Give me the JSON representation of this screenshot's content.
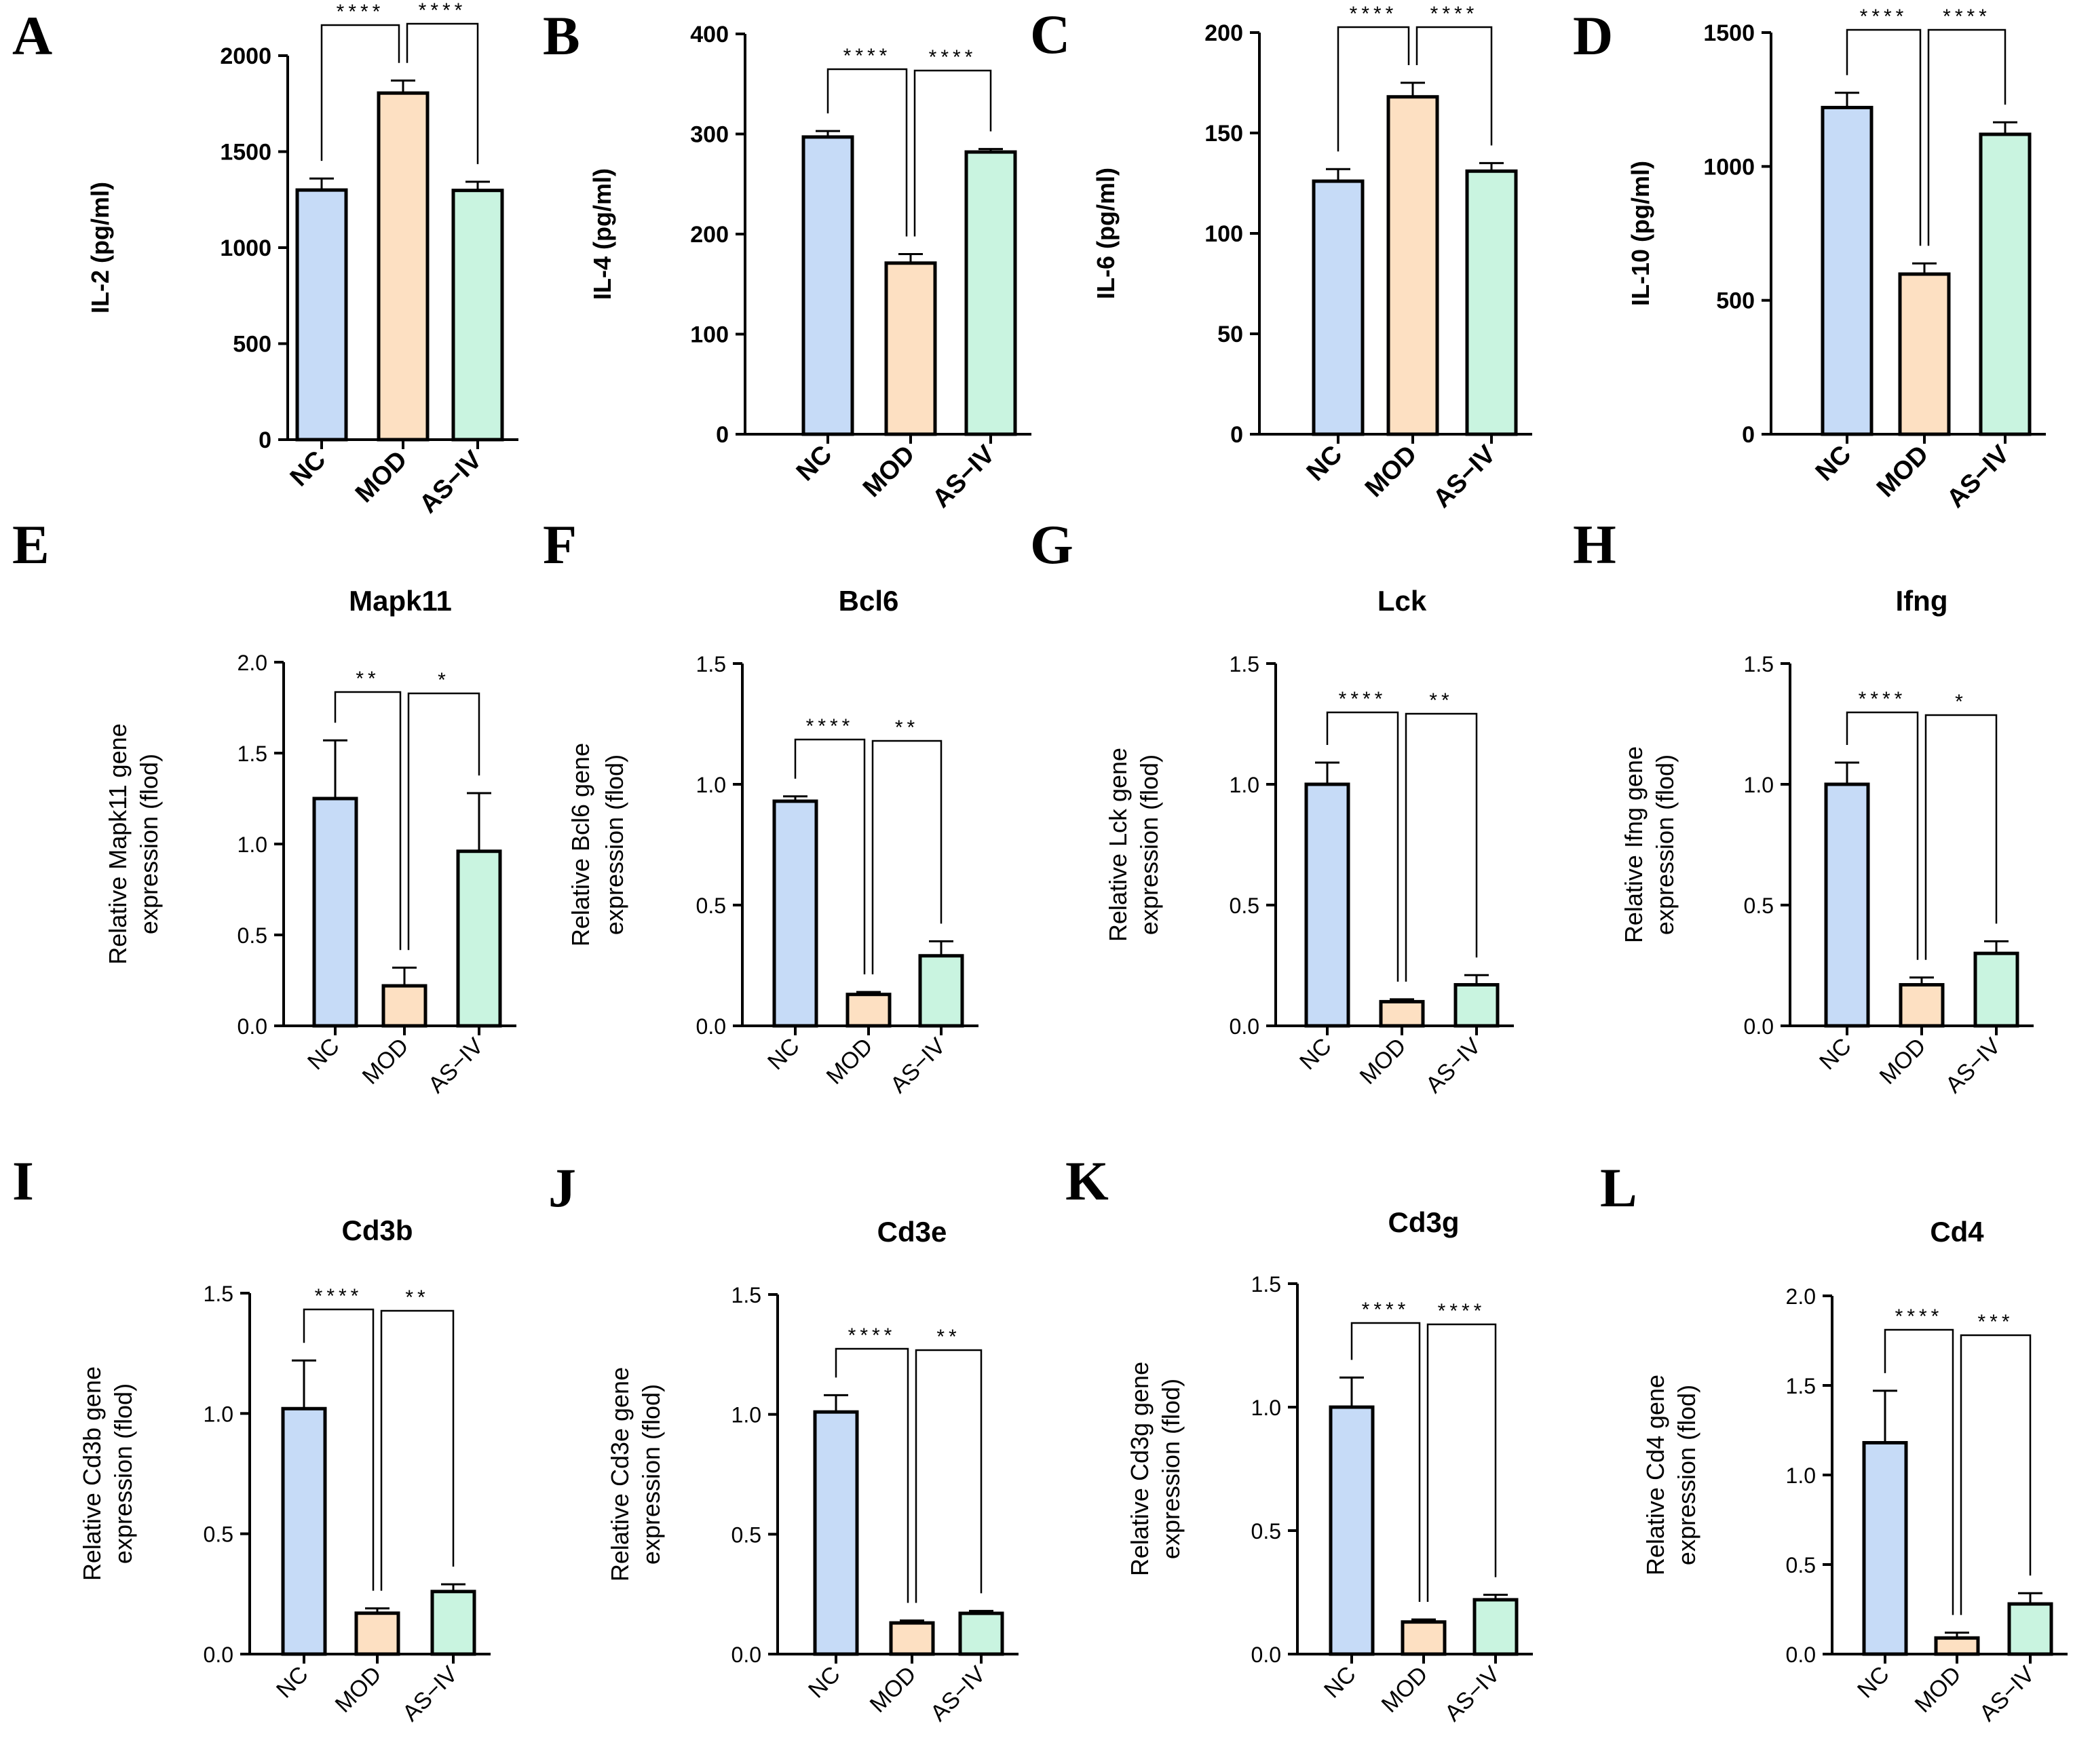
{
  "figure": {
    "colors": {
      "NC": "#c6dbf7",
      "MOD": "#fde0c2",
      "AS-IV": "#c9f4e0",
      "stroke": "#000000",
      "text": "#000000"
    }
  },
  "chart_data": [
    {
      "panel": "A",
      "type": "bar",
      "title": "",
      "ylabel": "IL-2 (pg/ml)",
      "categories": [
        "NC",
        "MOD",
        "AS−IV"
      ],
      "values": [
        1300,
        1805,
        1298
      ],
      "errors": [
        60,
        65,
        45
      ],
      "ylim": [
        0,
        2000
      ],
      "yticks": [
        "0",
        "500",
        "1000",
        "1500",
        "2000"
      ],
      "significance": [
        {
          "from": 0,
          "to": 1,
          "label": "****"
        },
        {
          "from": 1,
          "to": 2,
          "label": "****"
        }
      ]
    },
    {
      "panel": "B",
      "type": "bar",
      "title": "",
      "ylabel": "IL-4 (pg/ml)",
      "categories": [
        "NC",
        "MOD",
        "AS−IV"
      ],
      "values": [
        297,
        171,
        282
      ],
      "errors": [
        6,
        9,
        3
      ],
      "ylim": [
        0,
        400
      ],
      "yticks": [
        "0",
        "100",
        "200",
        "300",
        "400"
      ],
      "significance": [
        {
          "from": 0,
          "to": 1,
          "label": "****"
        },
        {
          "from": 1,
          "to": 2,
          "label": "****"
        }
      ]
    },
    {
      "panel": "C",
      "type": "bar",
      "title": "",
      "ylabel": "IL-6 (pg/ml)",
      "categories": [
        "NC",
        "MOD",
        "AS−IV"
      ],
      "values": [
        126,
        168,
        131
      ],
      "errors": [
        6,
        7,
        4
      ],
      "ylim": [
        0,
        200
      ],
      "yticks": [
        "0",
        "50",
        "100",
        "150",
        "200"
      ],
      "significance": [
        {
          "from": 0,
          "to": 1,
          "label": "****"
        },
        {
          "from": 1,
          "to": 2,
          "label": "****"
        }
      ]
    },
    {
      "panel": "D",
      "type": "bar",
      "title": "",
      "ylabel": "IL-10 (pg/ml)",
      "categories": [
        "NC",
        "MOD",
        "AS−IV"
      ],
      "values": [
        1220,
        598,
        1120
      ],
      "errors": [
        55,
        40,
        45
      ],
      "ylim": [
        0,
        1500
      ],
      "yticks": [
        "0",
        "500",
        "1000",
        "1500"
      ],
      "significance": [
        {
          "from": 0,
          "to": 1,
          "label": "****"
        },
        {
          "from": 1,
          "to": 2,
          "label": "****"
        }
      ]
    },
    {
      "panel": "E",
      "type": "bar",
      "title": "Mapk11",
      "ylabel": [
        "Relative Mapk11  gene",
        "expression (flod)"
      ],
      "categories": [
        "NC",
        "MOD",
        "AS−IV"
      ],
      "values": [
        1.25,
        0.22,
        0.96
      ],
      "errors": [
        0.32,
        0.1,
        0.32
      ],
      "ylim": [
        0,
        2
      ],
      "yticks": [
        "0.0",
        "0.5",
        "1.0",
        "1.5",
        "2.0"
      ],
      "significance": [
        {
          "from": 0,
          "to": 1,
          "label": "**"
        },
        {
          "from": 1,
          "to": 2,
          "label": "*"
        }
      ]
    },
    {
      "panel": "F",
      "type": "bar",
      "title": "Bcl6",
      "ylabel": [
        "Relative Bcl6 gene",
        "expression (flod)"
      ],
      "categories": [
        "NC",
        "MOD",
        "AS−IV"
      ],
      "values": [
        0.93,
        0.13,
        0.29
      ],
      "errors": [
        0.02,
        0.01,
        0.06
      ],
      "ylim": [
        0,
        1.5
      ],
      "yticks": [
        "0.0",
        "0.5",
        "1.0",
        "1.5"
      ],
      "significance": [
        {
          "from": 0,
          "to": 1,
          "label": "****"
        },
        {
          "from": 1,
          "to": 2,
          "label": "**"
        }
      ]
    },
    {
      "panel": "G",
      "type": "bar",
      "title": "Lck",
      "ylabel": [
        "Relative Lck gene",
        "expression (flod)"
      ],
      "categories": [
        "NC",
        "MOD",
        "AS−IV"
      ],
      "values": [
        1.0,
        0.1,
        0.17
      ],
      "errors": [
        0.09,
        0.01,
        0.04
      ],
      "ylim": [
        0,
        1.5
      ],
      "yticks": [
        "0.0",
        "0.5",
        "1.0",
        "1.5"
      ],
      "significance": [
        {
          "from": 0,
          "to": 1,
          "label": "****"
        },
        {
          "from": 1,
          "to": 2,
          "label": "**"
        }
      ]
    },
    {
      "panel": "H",
      "type": "bar",
      "title": "Ifng",
      "ylabel": [
        "Relative Ifng gene",
        "expression (flod)"
      ],
      "categories": [
        "NC",
        "MOD",
        "AS−IV"
      ],
      "values": [
        1.0,
        0.17,
        0.3
      ],
      "errors": [
        0.09,
        0.03,
        0.05
      ],
      "ylim": [
        0,
        1.5
      ],
      "yticks": [
        "0.0",
        "0.5",
        "1.0",
        "1.5"
      ],
      "significance": [
        {
          "from": 0,
          "to": 1,
          "label": "****"
        },
        {
          "from": 1,
          "to": 2,
          "label": "*"
        }
      ]
    },
    {
      "panel": "I",
      "type": "bar",
      "title": "Cd3b",
      "ylabel": [
        "Relative Cd3b gene",
        "expression (flod)"
      ],
      "categories": [
        "NC",
        "MOD",
        "AS−IV"
      ],
      "values": [
        1.02,
        0.17,
        0.26
      ],
      "errors": [
        0.2,
        0.02,
        0.03
      ],
      "ylim": [
        0,
        1.5
      ],
      "yticks": [
        "0.0",
        "0.5",
        "1.0",
        "1.5"
      ],
      "significance": [
        {
          "from": 0,
          "to": 1,
          "label": "****"
        },
        {
          "from": 1,
          "to": 2,
          "label": "**"
        }
      ]
    },
    {
      "panel": "J",
      "type": "bar",
      "title": "Cd3e",
      "ylabel": [
        "Relative Cd3e gene",
        "expression (flod)"
      ],
      "categories": [
        "NC",
        "MOD",
        "AS−IV"
      ],
      "values": [
        1.01,
        0.13,
        0.17
      ],
      "errors": [
        0.07,
        0.01,
        0.01
      ],
      "ylim": [
        0,
        1.5
      ],
      "yticks": [
        "0.0",
        "0.5",
        "1.0",
        "1.5"
      ],
      "significance": [
        {
          "from": 0,
          "to": 1,
          "label": "****"
        },
        {
          "from": 1,
          "to": 2,
          "label": "**"
        }
      ]
    },
    {
      "panel": "K",
      "type": "bar",
      "title": "Cd3g",
      "ylabel": [
        "Relative Cd3g gene",
        "expression (flod)"
      ],
      "categories": [
        "NC",
        "MOD",
        "AS−IV"
      ],
      "values": [
        1.0,
        0.13,
        0.22
      ],
      "errors": [
        0.12,
        0.01,
        0.02
      ],
      "ylim": [
        0,
        1.5
      ],
      "yticks": [
        "0.0",
        "0.5",
        "1.0",
        "1.5"
      ],
      "significance": [
        {
          "from": 0,
          "to": 1,
          "label": "****"
        },
        {
          "from": 1,
          "to": 2,
          "label": "****"
        }
      ]
    },
    {
      "panel": "L",
      "type": "bar",
      "title": "Cd4",
      "ylabel": [
        "Relative Cd4 gene",
        "expression (flod)"
      ],
      "categories": [
        "NC",
        "MOD",
        "AS−IV"
      ],
      "values": [
        1.18,
        0.09,
        0.28
      ],
      "errors": [
        0.29,
        0.03,
        0.06
      ],
      "ylim": [
        0,
        2
      ],
      "yticks": [
        "0.0",
        "0.5",
        "1.0",
        "1.5",
        "2.0"
      ],
      "significance": [
        {
          "from": 0,
          "to": 1,
          "label": "****"
        },
        {
          "from": 1,
          "to": 2,
          "label": "***"
        }
      ]
    }
  ]
}
